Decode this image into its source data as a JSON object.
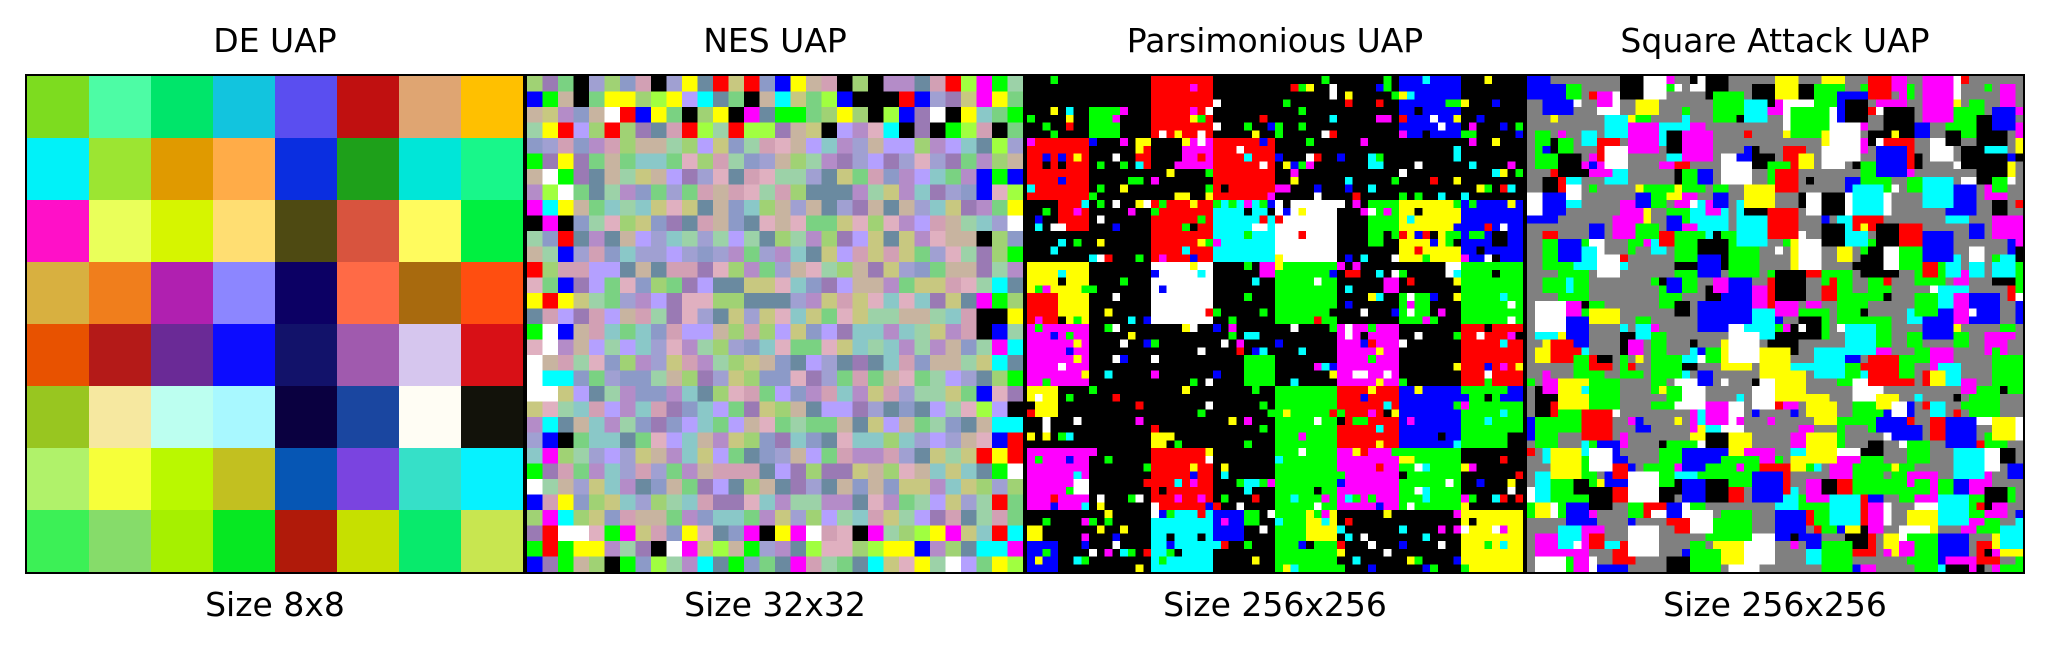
{
  "panels": [
    {
      "title": "DE UAP",
      "size_label": "Size 8x8",
      "grid": 8
    },
    {
      "title": "NES UAP",
      "size_label": "Size 32x32",
      "grid": 32
    },
    {
      "title": "Parsimonious UAP",
      "size_label": "Size 256x256",
      "grid": 256
    },
    {
      "title": "Square Attack UAP",
      "size_label": "Size 256x256",
      "grid": 256
    }
  ],
  "de_colors": [
    [
      "#7ddc1f",
      "#4dfca5",
      "#00e56a",
      "#12c4de",
      "#5a4ef0",
      "#c01010",
      "#dfa572",
      "#ffc000"
    ],
    [
      "#00f2f9",
      "#9ce532",
      "#e09a00",
      "#ffac48",
      "#0a2ee0",
      "#1ea01a",
      "#00e6d8",
      "#18f78a"
    ],
    [
      "#ff10c8",
      "#eaff5a",
      "#d6f500",
      "#ffde72",
      "#4e4a12",
      "#d8543e",
      "#fffb5e",
      "#00f040"
    ],
    [
      "#d8b040",
      "#f07e1c",
      "#b020b0",
      "#8c86ff",
      "#0c0064",
      "#ff6a46",
      "#a86a0e",
      "#ff4e10"
    ],
    [
      "#e85200",
      "#b41a18",
      "#6a2a96",
      "#0c0cff",
      "#12126a",
      "#a05aae",
      "#d6c6ee",
      "#d81016"
    ],
    [
      "#98c620",
      "#f6e8a0",
      "#bcfff0",
      "#a8f8ff",
      "#0a0040",
      "#1a46a0",
      "#fffdf4",
      "#12120a"
    ],
    [
      "#b0f26a",
      "#f6ff3a",
      "#baf800",
      "#c2c020",
      "#0656b4",
      "#7a44e0",
      "#36e0c8",
      "#06f2ff"
    ],
    [
      "#3cf056",
      "#86dc6a",
      "#a6f000",
      "#06e822",
      "#b01a0a",
      "#c6e000",
      "#08ea6c",
      "#c8e650"
    ]
  ],
  "nes_palette": [
    "#9cd2a8",
    "#b48cc8",
    "#8c9ac8",
    "#d2a0b4",
    "#a0d274",
    "#6a8aa0",
    "#c8b4a0",
    "#8ac8c8",
    "#b4a0ff",
    "#7ad282",
    "#e0b0c0",
    "#a0a0d2",
    "#c8c880",
    "#9a7ab4"
  ],
  "pars_palette": [
    "#000000",
    "#00ff00",
    "#00ff00",
    "#ff00ff",
    "#0000ff",
    "#00ffff",
    "#ff0000",
    "#ffff00",
    "#ffffff"
  ],
  "sq_palette": [
    "#00ff00",
    "#00ff00",
    "#ff00ff",
    "#808080",
    "#ffffff",
    "#0000ff",
    "#ff0000",
    "#00ffff",
    "#ffff00",
    "#000000"
  ]
}
